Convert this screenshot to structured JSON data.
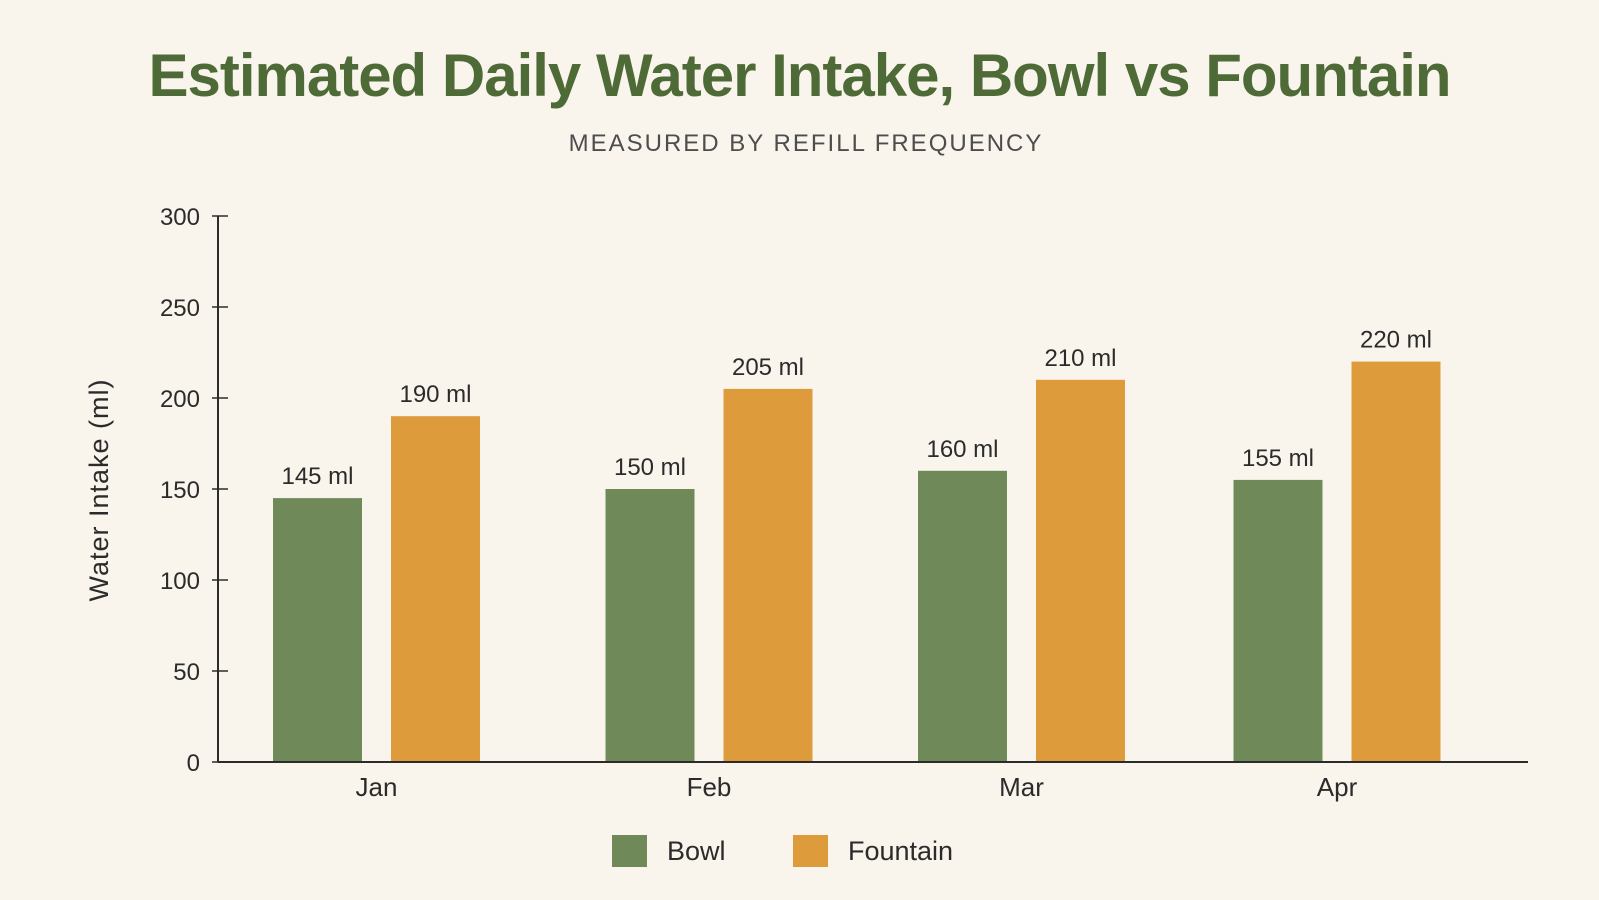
{
  "chart_data": {
    "type": "bar",
    "title": "Estimated Daily Water Intake, Bowl vs Fountain",
    "subtitle": "MEASURED BY REFILL FREQUENCY",
    "xlabel": "",
    "ylabel": "Water Intake (ml)",
    "categories": [
      "Jan",
      "Feb",
      "Mar",
      "Apr"
    ],
    "series": [
      {
        "name": "Bowl",
        "values": [
          145,
          150,
          160,
          155
        ],
        "labels": [
          "145 ml",
          "150 ml",
          "160 ml",
          "155 ml"
        ],
        "color": "#6f8a58"
      },
      {
        "name": "Fountain",
        "values": [
          190,
          205,
          210,
          220
        ],
        "labels": [
          "190 ml",
          "205 ml",
          "210 ml",
          "220 ml"
        ],
        "color": "#de9b3b"
      }
    ],
    "ylim": [
      0,
      300
    ],
    "yticks": [
      "0",
      "50",
      "100",
      "150",
      "200",
      "250",
      "300"
    ],
    "grid": false,
    "legend_position": "bottom-center"
  },
  "colors": {
    "background": "#f9f5ec",
    "title": "#4e6b37",
    "axis": "#2b2b2b"
  }
}
